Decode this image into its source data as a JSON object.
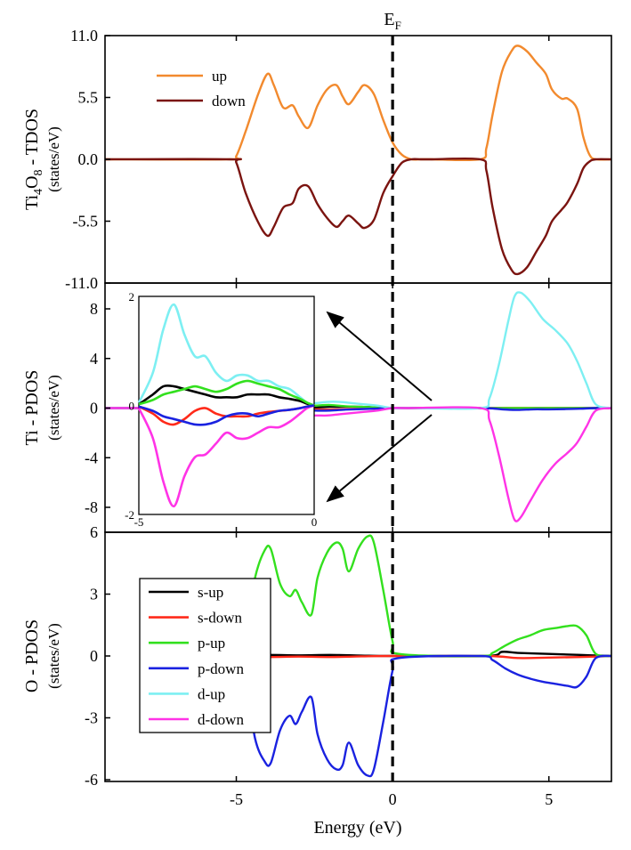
{
  "figure": {
    "ef_label": "E",
    "ef_sub": "F",
    "xlabel": "Energy (eV)",
    "xlim": [
      -9.2,
      7
    ],
    "xticks": [
      -5,
      0,
      5
    ]
  },
  "chart_data": [
    {
      "panel": "tdos",
      "type": "line",
      "ylabel_parts": [
        "Ti",
        "4",
        "O",
        "8",
        " - TDOS"
      ],
      "yunit": "(states/eV)",
      "ylim": [
        -11,
        11
      ],
      "ytick_labels": [
        "11.0",
        "5.5",
        "0.0",
        "-5.5",
        "-11.0"
      ],
      "ytick_values": [
        11,
        5.5,
        0,
        -5.5,
        -11
      ],
      "legend": [
        {
          "name": "up",
          "color": "#F28A2E"
        },
        {
          "name": "down",
          "color": "#7B1410"
        }
      ],
      "series": [
        {
          "name": "up",
          "color": "#F28A2E",
          "x": [
            -9.2,
            -5.2,
            -5,
            -4.7,
            -4.3,
            -4,
            -3.8,
            -3.5,
            -3.2,
            -3,
            -2.7,
            -2.4,
            -2.1,
            -1.8,
            -1.6,
            -1.4,
            -1.1,
            -0.9,
            -0.6,
            -0.3,
            0,
            0.3,
            0.6,
            0.9,
            1.2,
            2.8,
            3,
            3.2,
            3.5,
            3.8,
            4,
            4.3,
            4.6,
            4.9,
            5.1,
            5.4,
            5.6,
            5.9,
            6.1,
            6.3,
            6.5,
            7
          ],
          "y": [
            0,
            0,
            0.3,
            2.5,
            5.8,
            7.6,
            6.6,
            4.6,
            4.8,
            3.8,
            2.8,
            4.8,
            6.2,
            6.6,
            5.6,
            4.9,
            6.0,
            6.6,
            5.8,
            3.5,
            1.5,
            0.4,
            0,
            0,
            0,
            0,
            1.0,
            4.0,
            7.8,
            9.6,
            10.1,
            9.6,
            8.6,
            7.6,
            6.2,
            5.4,
            5.4,
            4.5,
            2.0,
            0.4,
            0,
            0
          ]
        },
        {
          "name": "down",
          "color": "#7B1410",
          "x": [
            -9.2,
            -5.2,
            -5,
            -4.7,
            -4.3,
            -4,
            -3.8,
            -3.5,
            -3.2,
            -3,
            -2.7,
            -2.4,
            -2.1,
            -1.8,
            -1.6,
            -1.4,
            -1.1,
            -0.9,
            -0.6,
            -0.3,
            0,
            0.3,
            0.6,
            0.9,
            1.2,
            2.8,
            3,
            3.2,
            3.5,
            3.8,
            4,
            4.3,
            4.6,
            4.9,
            5.1,
            5.4,
            5.6,
            5.9,
            6.1,
            6.3,
            6.5,
            7
          ],
          "y": [
            0,
            0,
            -0.3,
            -3,
            -5.6,
            -6.8,
            -6,
            -4.3,
            -3.9,
            -2.6,
            -2.4,
            -4,
            -5.2,
            -6,
            -5.5,
            -5.0,
            -5.7,
            -6.1,
            -5.4,
            -3.0,
            -1.5,
            -0.3,
            0,
            0,
            0,
            0,
            -1.0,
            -4.3,
            -8.0,
            -9.8,
            -10.2,
            -9.6,
            -8.2,
            -6.8,
            -5.5,
            -4.5,
            -3.8,
            -2.2,
            -0.8,
            -0.2,
            0,
            0
          ]
        }
      ]
    },
    {
      "panel": "ti_pdos",
      "type": "line",
      "ylabel": "Ti - PDOS",
      "yunit": "(states/eV)",
      "ylim": [
        -9.5,
        10
      ],
      "yticks": [
        8,
        4,
        0,
        -4,
        -8
      ],
      "series": [
        {
          "name": "s-up",
          "color": "#000000",
          "x": [
            -9.2,
            -5.2,
            -5,
            -4.5,
            -4,
            -3.5,
            -3,
            -2.5,
            -2,
            -1.5,
            -1,
            -0.5,
            0,
            7
          ],
          "y": [
            0,
            0,
            0.05,
            0.2,
            0.22,
            0.15,
            0.1,
            0.05,
            0.1,
            0.12,
            0.1,
            0.05,
            0,
            0
          ]
        },
        {
          "name": "s-down",
          "color": "#FF2A1A",
          "x": [
            -9.2,
            -5.2,
            -5,
            -4.5,
            -4,
            -3.5,
            -3,
            -2.5,
            -2,
            -1.5,
            -1,
            -0.5,
            0,
            7
          ],
          "y": [
            0,
            0,
            -0.05,
            -0.2,
            -0.25,
            -0.15,
            -0.05,
            -0.1,
            -0.12,
            -0.08,
            -0.05,
            -0.03,
            0,
            0
          ]
        },
        {
          "name": "p-up",
          "color": "#33E01E",
          "x": [
            -9.2,
            -5.2,
            -5,
            -4.5,
            -4,
            -3.5,
            -3,
            -2.5,
            -2,
            -1.5,
            -1,
            -0.5,
            0,
            5,
            7
          ],
          "y": [
            0,
            0,
            0.05,
            0.15,
            0.2,
            0.15,
            0.15,
            0.2,
            0.25,
            0.15,
            0.1,
            0.05,
            0,
            0,
            0
          ]
        },
        {
          "name": "p-down",
          "color": "#1A22E0",
          "x": [
            -9.2,
            -5.2,
            -5,
            -4.5,
            -4,
            -3.5,
            -3,
            -2.5,
            -2,
            -1.5,
            -1,
            -0.5,
            0,
            2.8,
            3.5,
            4,
            4.5,
            5,
            5.5,
            6,
            6.5,
            7
          ],
          "y": [
            0,
            0,
            -0.05,
            -0.15,
            -0.2,
            -0.15,
            -0.1,
            -0.2,
            -0.2,
            -0.12,
            -0.08,
            -0.04,
            0,
            0,
            -0.1,
            -0.15,
            -0.1,
            -0.1,
            -0.08,
            -0.05,
            0,
            0
          ]
        },
        {
          "name": "d-up",
          "color": "#7DEFF2",
          "x": [
            -9.2,
            -5.2,
            -5,
            -4.7,
            -4.4,
            -4.1,
            -3.8,
            -3.5,
            -3.2,
            -2.9,
            -2.5,
            -2.1,
            -1.7,
            -1.3,
            -0.9,
            -0.5,
            0,
            0.5,
            2.8,
            3.1,
            3.4,
            3.7,
            3.9,
            4.1,
            4.4,
            4.8,
            5.2,
            5.6,
            5.9,
            6.2,
            6.5,
            7
          ],
          "y": [
            0,
            0,
            0.1,
            0.6,
            1.5,
            1.9,
            1.4,
            0.9,
            0.9,
            0.6,
            0.4,
            0.5,
            0.5,
            0.4,
            0.3,
            0.2,
            0,
            0,
            0,
            0.8,
            3.5,
            7.0,
            9.0,
            9.3,
            8.6,
            7.2,
            6.3,
            5.2,
            3.8,
            2.0,
            0.3,
            0
          ]
        },
        {
          "name": "d-down",
          "color": "#FF33E6",
          "x": [
            -9.2,
            -5.2,
            -5,
            -4.7,
            -4.4,
            -4.1,
            -3.8,
            -3.5,
            -3.2,
            -2.9,
            -2.5,
            -2.1,
            -1.7,
            -1.3,
            -0.9,
            -0.5,
            0,
            0.5,
            2.8,
            3.1,
            3.4,
            3.7,
            3.9,
            4.1,
            4.4,
            4.8,
            5.2,
            5.6,
            5.9,
            6.2,
            6.5,
            7
          ],
          "y": [
            0,
            0,
            -0.1,
            -0.6,
            -1.5,
            -1.9,
            -1.4,
            -0.9,
            -0.9,
            -0.7,
            -0.6,
            -0.6,
            -0.5,
            -0.4,
            -0.3,
            -0.2,
            0,
            0,
            0,
            -1.0,
            -3.8,
            -7.2,
            -9.0,
            -8.8,
            -7.5,
            -5.8,
            -4.5,
            -3.6,
            -2.8,
            -1.5,
            -0.2,
            0
          ]
        }
      ],
      "inset": {
        "xlim": [
          -5,
          0
        ],
        "ylim": [
          -2,
          2
        ],
        "xtick_labels": [
          "-5",
          "0"
        ],
        "ytick_labels": [
          "2",
          "0",
          "-2"
        ],
        "series": [
          {
            "name": "d-up",
            "color": "#7DEFF2",
            "x": [
              -5,
              -4.6,
              -4.3,
              -4,
              -3.7,
              -3.4,
              -3.1,
              -2.8,
              -2.5,
              -2.2,
              -1.9,
              -1.6,
              -1.3,
              -1,
              -0.7,
              -0.4,
              -0.2,
              0
            ],
            "y": [
              0.05,
              0.6,
              1.4,
              1.85,
              1.3,
              0.9,
              0.9,
              0.6,
              0.45,
              0.55,
              0.55,
              0.45,
              0.45,
              0.35,
              0.3,
              0.15,
              0.05,
              0
            ]
          },
          {
            "name": "d-down",
            "color": "#FF33E6",
            "x": [
              -5,
              -4.6,
              -4.3,
              -4,
              -3.7,
              -3.4,
              -3.1,
              -2.8,
              -2.5,
              -2.2,
              -1.9,
              -1.6,
              -1.3,
              -1,
              -0.7,
              -0.4,
              -0.2,
              0
            ],
            "y": [
              -0.05,
              -0.6,
              -1.4,
              -1.85,
              -1.3,
              -0.95,
              -0.9,
              -0.7,
              -0.5,
              -0.6,
              -0.6,
              -0.5,
              -0.4,
              -0.4,
              -0.3,
              -0.15,
              -0.05,
              0
            ]
          },
          {
            "name": "s-up",
            "color": "#000000",
            "x": [
              -5,
              -4.6,
              -4.3,
              -4,
              -3.7,
              -3.4,
              -3.1,
              -2.8,
              -2.5,
              -2.2,
              -1.9,
              -1.6,
              -1.3,
              -1,
              -0.7,
              -0.4,
              -0.2,
              0
            ],
            "y": [
              0.02,
              0.2,
              0.35,
              0.35,
              0.3,
              0.25,
              0.2,
              0.15,
              0.15,
              0.15,
              0.2,
              0.2,
              0.2,
              0.15,
              0.12,
              0.08,
              0.03,
              0
            ]
          },
          {
            "name": "s-down",
            "color": "#FF2A1A",
            "x": [
              -5,
              -4.6,
              -4.3,
              -4,
              -3.7,
              -3.4,
              -3.1,
              -2.8,
              -2.5,
              -2.2,
              -1.9,
              -1.6,
              -1.3,
              -1,
              -0.7,
              -0.4,
              -0.2,
              0
            ],
            "y": [
              -0.02,
              -0.15,
              -0.3,
              -0.35,
              -0.25,
              -0.1,
              -0.05,
              -0.15,
              -0.2,
              -0.2,
              -0.2,
              -0.15,
              -0.12,
              -0.1,
              -0.08,
              -0.05,
              -0.02,
              0
            ]
          },
          {
            "name": "p-up",
            "color": "#33E01E",
            "x": [
              -5,
              -4.6,
              -4.3,
              -4,
              -3.7,
              -3.4,
              -3.1,
              -2.8,
              -2.5,
              -2.2,
              -1.9,
              -1.6,
              -1.3,
              -1,
              -0.7,
              -0.4,
              -0.2,
              0
            ],
            "y": [
              0.02,
              0.1,
              0.2,
              0.25,
              0.3,
              0.35,
              0.3,
              0.25,
              0.3,
              0.4,
              0.45,
              0.4,
              0.35,
              0.3,
              0.2,
              0.12,
              0.05,
              0
            ]
          },
          {
            "name": "p-down",
            "color": "#1A22E0",
            "x": [
              -5,
              -4.6,
              -4.3,
              -4,
              -3.7,
              -3.4,
              -3.1,
              -2.8,
              -2.5,
              -2.2,
              -1.9,
              -1.6,
              -1.3,
              -1,
              -0.7,
              -0.4,
              -0.2,
              0
            ],
            "y": [
              -0.02,
              -0.1,
              -0.2,
              -0.25,
              -0.3,
              -0.35,
              -0.35,
              -0.3,
              -0.2,
              -0.15,
              -0.15,
              -0.2,
              -0.15,
              -0.1,
              -0.08,
              -0.05,
              -0.02,
              0
            ]
          }
        ]
      }
    },
    {
      "panel": "o_pdos",
      "type": "line",
      "ylabel": "O - PDOS",
      "yunit": "(states/eV)",
      "ylim": [
        -6,
        6
      ],
      "yticks": [
        6,
        3,
        0,
        -3,
        -6
      ],
      "legend": [
        {
          "name": "s-up",
          "color": "#000000"
        },
        {
          "name": "s-down",
          "color": "#FF2A1A"
        },
        {
          "name": "p-up",
          "color": "#33E01E"
        },
        {
          "name": "p-down",
          "color": "#1A22E0"
        },
        {
          "name": "d-up",
          "color": "#7DEFF2"
        },
        {
          "name": "d-down",
          "color": "#FF33E6"
        }
      ],
      "series": [
        {
          "name": "s-up",
          "color": "#000000",
          "x": [
            -6.5,
            -5,
            -4,
            -3,
            -2,
            -1,
            0,
            3,
            3.5,
            4,
            5,
            6,
            7
          ],
          "y": [
            0,
            0,
            0.05,
            0.03,
            0.05,
            0.02,
            0,
            0,
            0.2,
            0.15,
            0.1,
            0.05,
            0
          ]
        },
        {
          "name": "s-down",
          "color": "#FF2A1A",
          "x": [
            -6.5,
            -5,
            -4,
            -3,
            -2,
            -1,
            0,
            3,
            4,
            5,
            6,
            7
          ],
          "y": [
            0,
            0,
            -0.05,
            -0.03,
            -0.05,
            -0.02,
            0,
            0,
            -0.1,
            -0.08,
            -0.05,
            0
          ]
        },
        {
          "name": "p-up",
          "color": "#33E01E",
          "x": [
            -6.5,
            -5.2,
            -5,
            -4.7,
            -4.4,
            -4.1,
            -3.9,
            -3.6,
            -3.3,
            -3.1,
            -2.9,
            -2.6,
            -2.4,
            -2.1,
            -1.8,
            -1.6,
            -1.4,
            -1.1,
            -0.8,
            -0.6,
            -0.3,
            0,
            0.2,
            2.8,
            3.2,
            3.6,
            4,
            4.4,
            4.8,
            5.2,
            5.6,
            5.9,
            6.2,
            6.5,
            7
          ],
          "y": [
            0,
            0,
            0.2,
            1.2,
            3.8,
            5.1,
            5.2,
            3.5,
            2.9,
            3.2,
            2.6,
            2.0,
            3.8,
            5.0,
            5.5,
            5.2,
            4.1,
            5.2,
            5.8,
            5.5,
            3.2,
            0.7,
            0.1,
            0,
            0.15,
            0.5,
            0.8,
            1.0,
            1.25,
            1.35,
            1.45,
            1.45,
            1.0,
            0.1,
            0
          ]
        },
        {
          "name": "p-down",
          "color": "#1A22E0",
          "x": [
            -6.5,
            -5.2,
            -5,
            -4.7,
            -4.4,
            -4.1,
            -3.9,
            -3.6,
            -3.3,
            -3.1,
            -2.9,
            -2.6,
            -2.4,
            -2.1,
            -1.8,
            -1.6,
            -1.4,
            -1.1,
            -0.8,
            -0.6,
            -0.3,
            0,
            0.2,
            2.8,
            3.2,
            3.6,
            4,
            4.4,
            4.8,
            5.2,
            5.6,
            5.9,
            6.2,
            6.5,
            7
          ],
          "y": [
            0,
            0,
            -0.2,
            -1.2,
            -4.0,
            -5.1,
            -5.2,
            -3.6,
            -2.9,
            -3.3,
            -2.7,
            -2.0,
            -3.8,
            -5.0,
            -5.5,
            -5.3,
            -4.2,
            -5.3,
            -5.8,
            -5.5,
            -3.2,
            -0.7,
            -0.1,
            0,
            -0.2,
            -0.6,
            -0.9,
            -1.1,
            -1.25,
            -1.35,
            -1.45,
            -1.5,
            -1.0,
            -0.1,
            0
          ]
        }
      ]
    }
  ]
}
